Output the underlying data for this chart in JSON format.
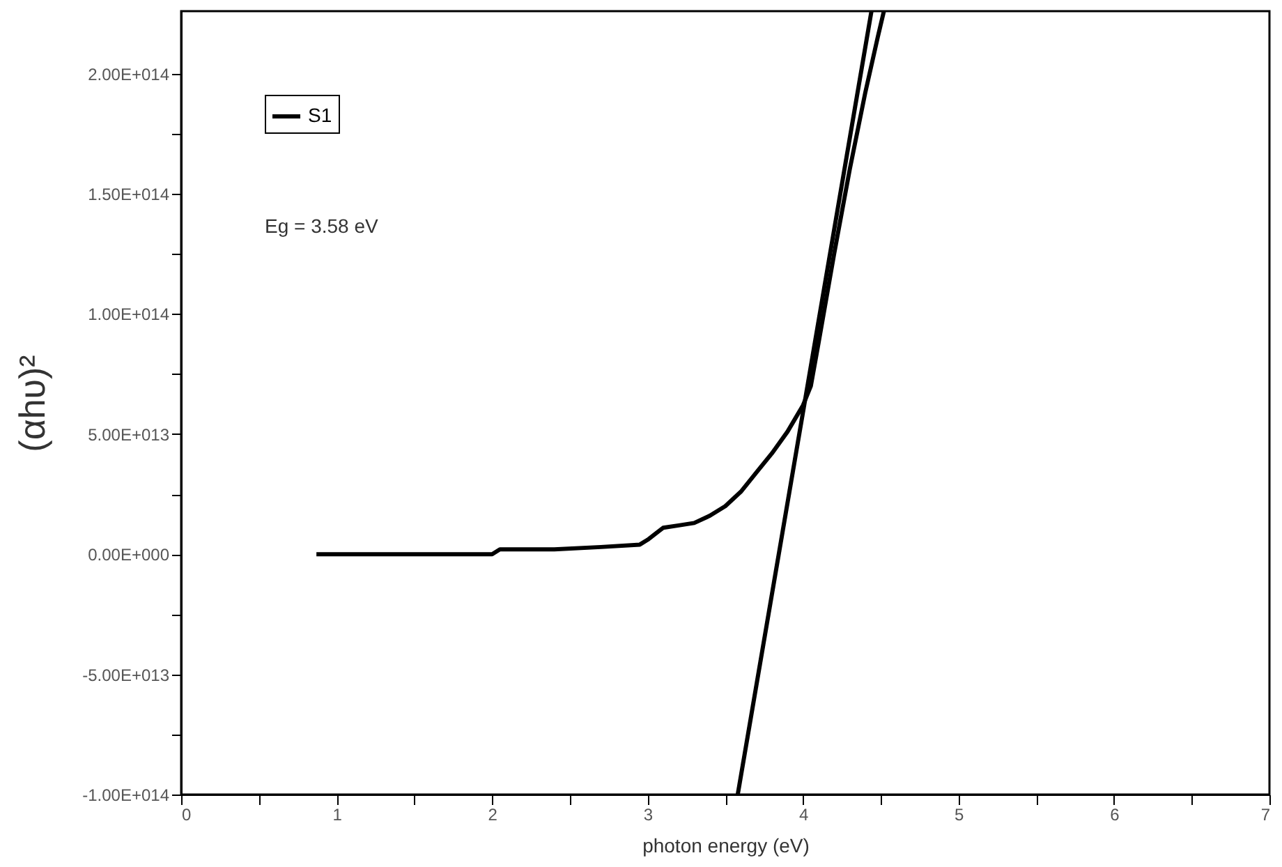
{
  "chart_data": {
    "type": "line",
    "xlabel": "photon energy (eV)",
    "ylabel": "(αhυ)²",
    "xlim": [
      0,
      7
    ],
    "ylim": [
      -100000000000000.0,
      226000000000000.0
    ],
    "xticks": [
      0,
      {
        "value": 0.5,
        "label": null
      },
      1,
      {
        "value": 1.5,
        "label": null
      },
      2,
      {
        "value": 2.5,
        "label": null
      },
      3,
      {
        "value": 3.5,
        "label": null
      },
      4,
      {
        "value": 4.5,
        "label": null
      },
      5,
      {
        "value": 5.5,
        "label": null
      },
      6,
      {
        "value": 6.5,
        "label": null
      },
      7
    ],
    "yticks": [
      {
        "value": -100000000000000.0,
        "label": "-1.00E+014"
      },
      {
        "value": -75000000000000.0,
        "label": null
      },
      {
        "value": -50000000000000.0,
        "label": "-5.00E+013"
      },
      {
        "value": -25000000000000.0,
        "label": null
      },
      {
        "value": 0,
        "label": "0.00E+000"
      },
      {
        "value": 25000000000000.0,
        "label": null
      },
      {
        "value": 50000000000000.0,
        "label": "5.00E+013"
      },
      {
        "value": 75000000000000.0,
        "label": null
      },
      {
        "value": 100000000000000.0,
        "label": "1.00E+014"
      },
      {
        "value": 125000000000000.0,
        "label": null
      },
      {
        "value": 150000000000000.0,
        "label": "1.50E+014"
      },
      {
        "value": 175000000000000.0,
        "label": null
      },
      {
        "value": 200000000000000.0,
        "label": "2.00E+014"
      }
    ],
    "grid": false,
    "legend": "top left",
    "line_style": "solid",
    "marker": "none",
    "annotations": [
      "Eg = 3.58 eV"
    ],
    "series": [
      {
        "name": "S1",
        "color": "#000000",
        "x": [
          0.87,
          1.2,
          1.6,
          2.0,
          2.05,
          2.4,
          2.7,
          2.95,
          3.0,
          3.1,
          3.2,
          3.3,
          3.4,
          3.5,
          3.6,
          3.7,
          3.8,
          3.9,
          4.0,
          4.05,
          4.1,
          4.2,
          4.3,
          4.4,
          4.48,
          4.52
        ],
        "values": [
          0,
          0,
          0,
          0,
          2000000000000.0,
          2000000000000.0,
          3000000000000.0,
          4000000000000.0,
          6000000000000.0,
          11000000000000.0,
          12000000000000.0,
          13000000000000.0,
          16000000000000.0,
          20000000000000.0,
          26000000000000.0,
          34000000000000.0,
          42000000000000.0,
          51000000000000.0,
          62000000000000.0,
          70000000000000.0,
          88000000000000.0,
          125000000000000.0,
          160000000000000.0,
          192000000000000.0,
          215000000000000.0,
          226000000000000.0
        ]
      },
      {
        "color": "#000000",
        "x": [
          3.58,
          4.44
        ],
        "values": [
          -100000000000000.0,
          226000000000000.0
        ]
      }
    ]
  }
}
